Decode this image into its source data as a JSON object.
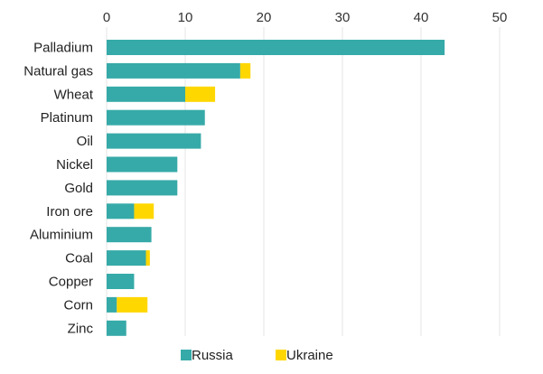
{
  "chart_data": {
    "type": "bar",
    "orientation": "horizontal",
    "stacked": true,
    "title": "",
    "xlabel": "",
    "ylabel": "",
    "xlim": [
      0,
      50
    ],
    "x_ticks": [
      0,
      10,
      20,
      30,
      40,
      50
    ],
    "x_axis_position": "top",
    "grid": true,
    "legend_position": "bottom",
    "categories": [
      "Palladium",
      "Natural gas",
      "Wheat",
      "Platinum",
      "Oil",
      "Nickel",
      "Gold",
      "Iron ore",
      "Aluminium",
      "Coal",
      "Copper",
      "Corn",
      "Zinc"
    ],
    "series": [
      {
        "name": "Russia",
        "color": "#36aaa8",
        "values": [
          43,
          17,
          10,
          12.5,
          12,
          9,
          9,
          3.5,
          5.7,
          5,
          3.5,
          1.3,
          2.5
        ]
      },
      {
        "name": "Ukraine",
        "color": "#ffd700",
        "values": [
          0,
          1.3,
          3.8,
          0,
          0,
          0,
          0,
          2.5,
          0,
          0.5,
          0,
          3.9,
          0
        ]
      }
    ]
  }
}
